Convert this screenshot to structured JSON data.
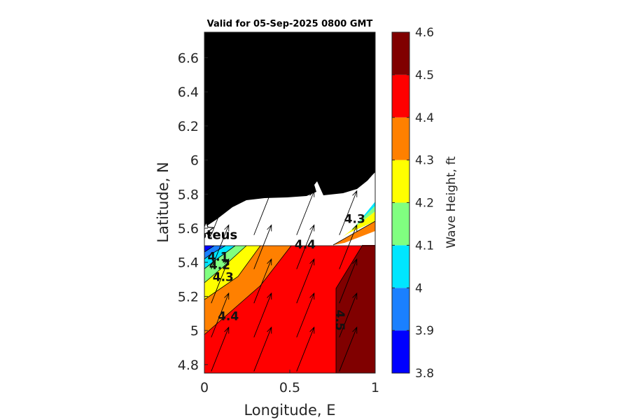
{
  "chart_data": {
    "type": "heatmap",
    "title": "Valid for 05-Sep-2025 0800 GMT",
    "xlabel": "Longitude, E",
    "ylabel": "Latitude, N",
    "xlim": [
      0,
      1
    ],
    "ylim": [
      4.75,
      6.75
    ],
    "x_ticks": [
      "0",
      "0.5",
      "1"
    ],
    "y_ticks": [
      "4.8",
      "5",
      "5.2",
      "5.4",
      "5.6",
      "5.8",
      "6",
      "6.2",
      "6.4",
      "6.6"
    ],
    "colorbar": {
      "label": "Wave Height, ft",
      "levels": [
        3.8,
        3.9,
        4.0,
        4.1,
        4.2,
        4.3,
        4.4,
        4.5,
        4.6
      ],
      "tick_labels": [
        "3.8",
        "3.9",
        "4",
        "4.1",
        "4.2",
        "4.3",
        "4.4",
        "4.5",
        "4.6"
      ],
      "colors": [
        "#0000ff",
        "#1a80ff",
        "#00e6ff",
        "#80ff80",
        "#ffff00",
        "#ff8000",
        "#ff0000",
        "#800000"
      ]
    },
    "contour_labels": [
      {
        "text": "4.1",
        "lon": 0.08,
        "lat": 5.41
      },
      {
        "text": "4.2",
        "lon": 0.09,
        "lat": 5.36
      },
      {
        "text": "4.3",
        "lon": 0.11,
        "lat": 5.29
      },
      {
        "text": "4.4",
        "lon": 0.14,
        "lat": 5.06
      },
      {
        "text": "4.4",
        "lon": 0.59,
        "lat": 5.48
      },
      {
        "text": "4.3",
        "lon": 0.88,
        "lat": 5.63
      },
      {
        "text": "4.5",
        "lon": 0.77,
        "lat": 5.06
      }
    ],
    "station": {
      "name": "Proteus",
      "lon": 0.01,
      "lat": 5.59
    },
    "land_color": "#ffffff",
    "no_data_color": "#000000",
    "wave_direction": "toward north-northeast",
    "grid": false
  }
}
